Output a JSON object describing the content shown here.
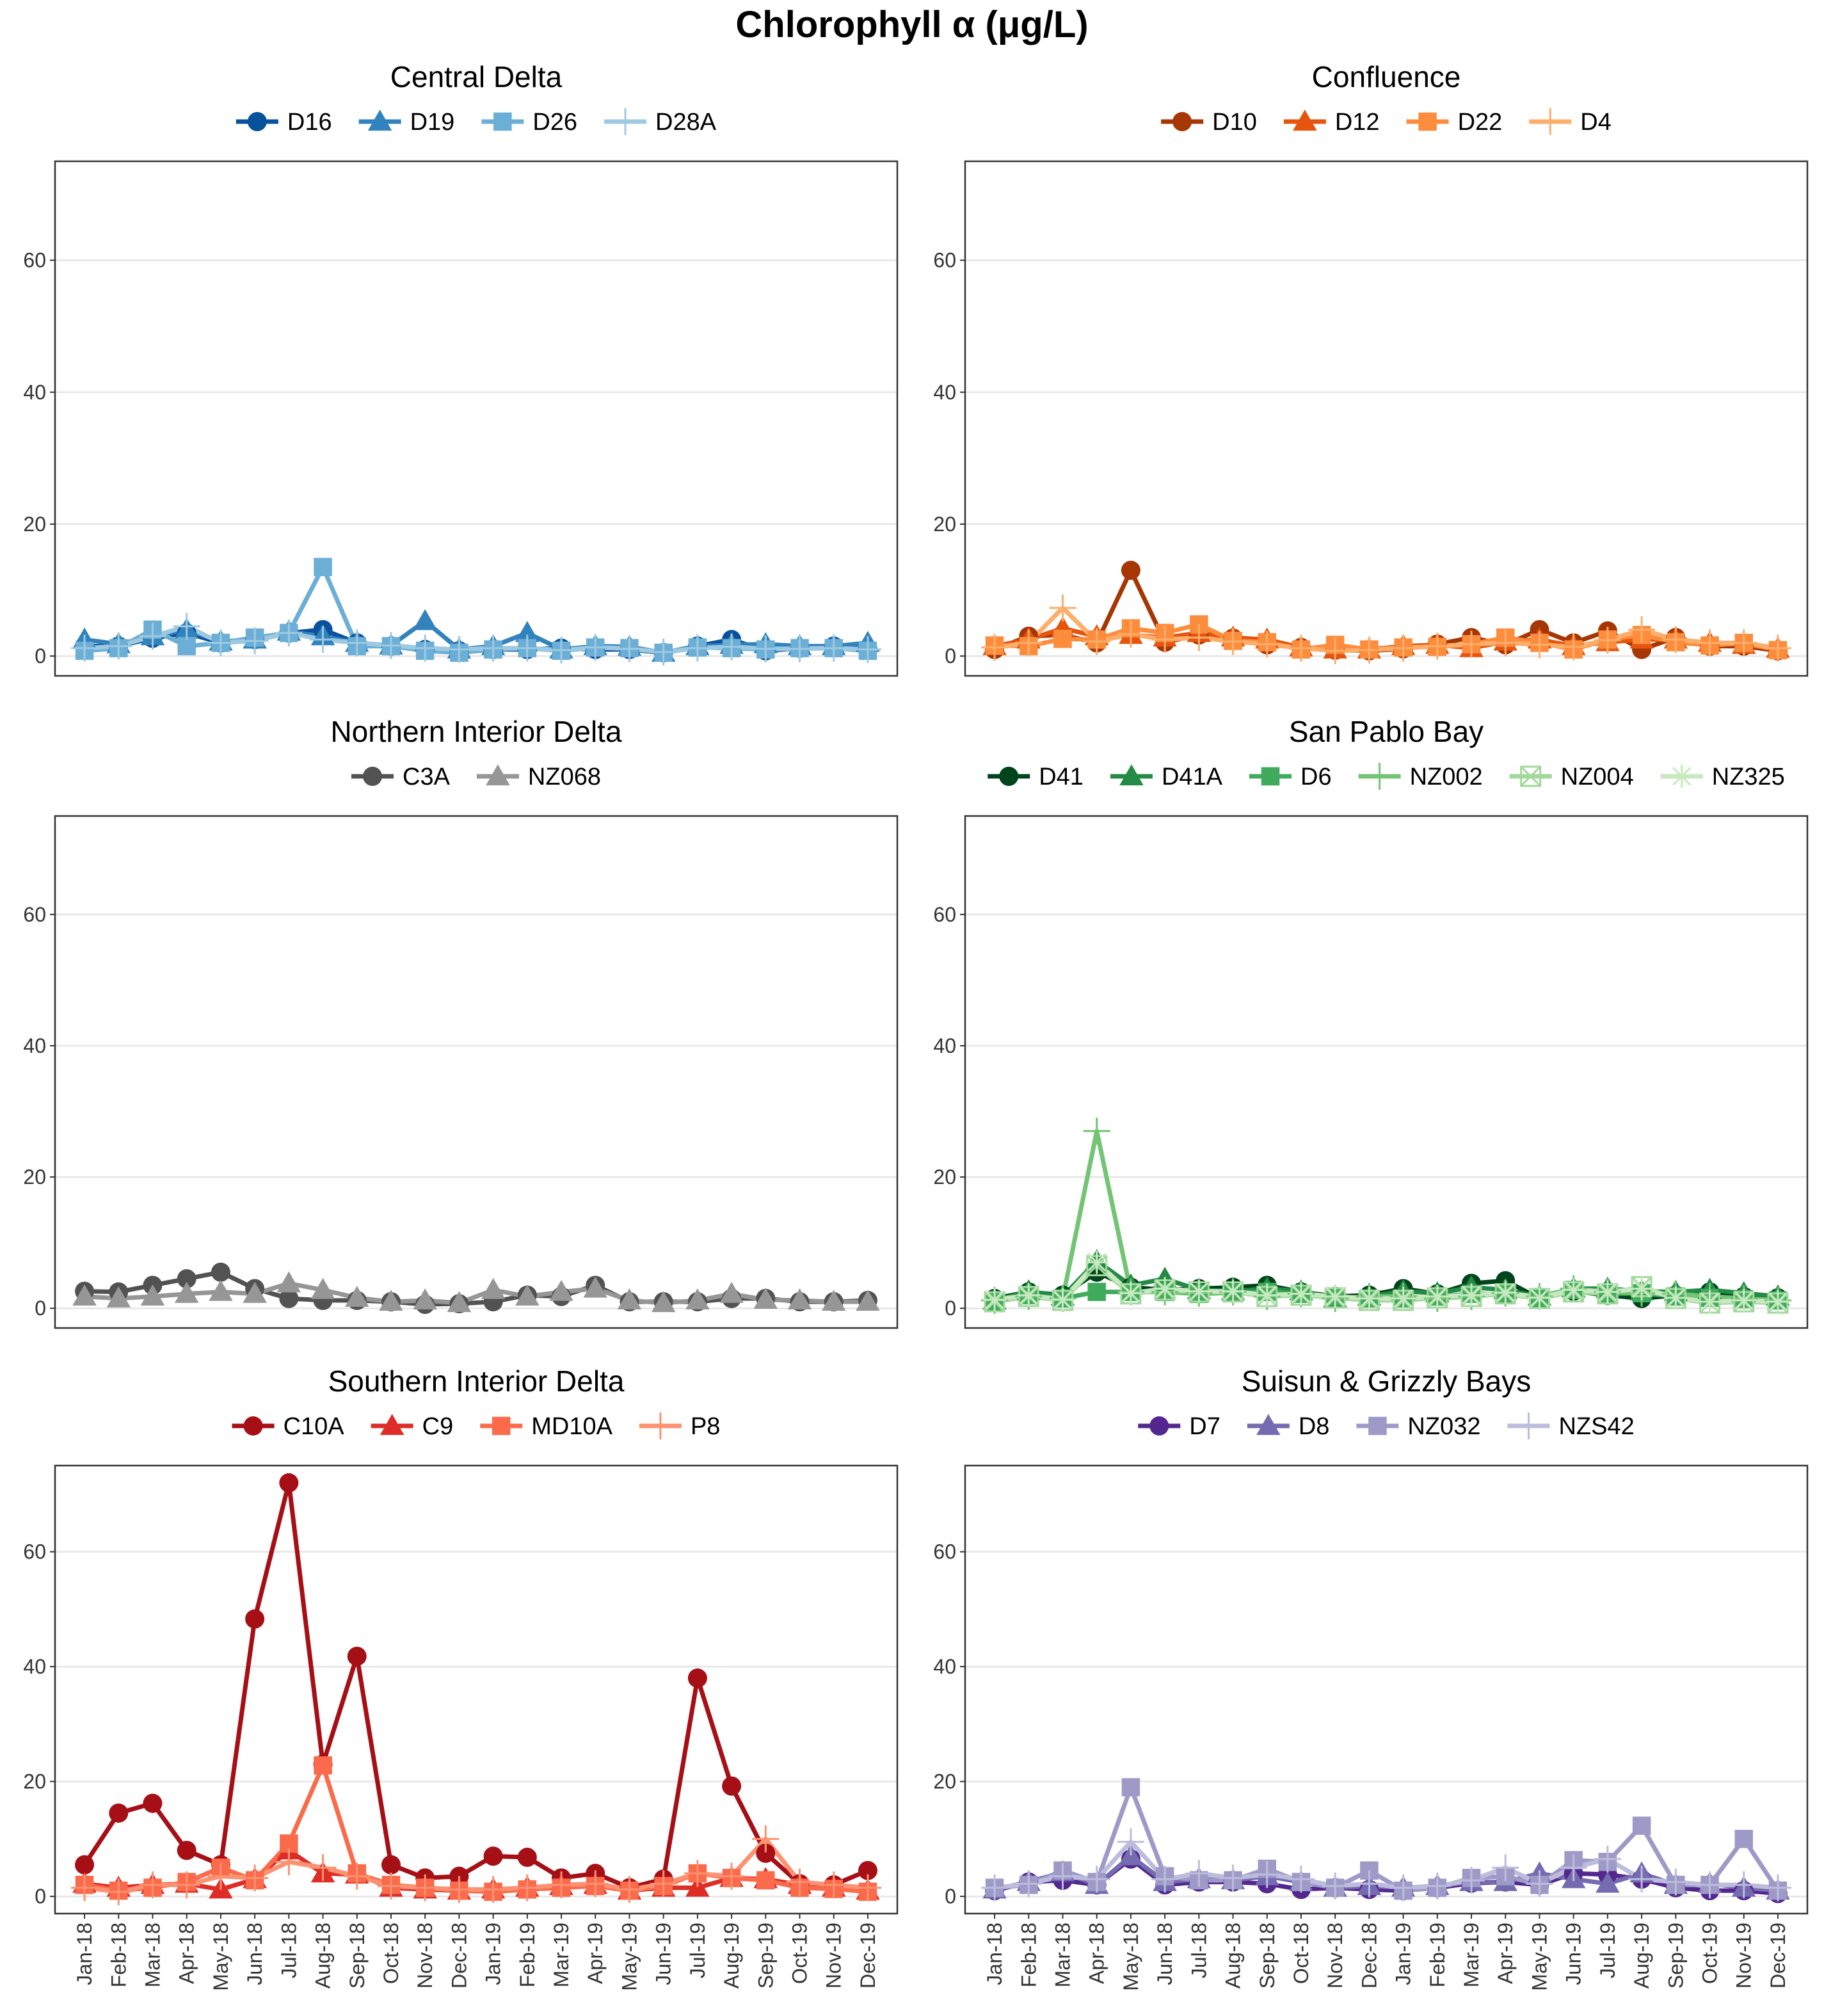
{
  "title": "Chlorophyll α (μg/L)",
  "months": [
    "Jan-18",
    "Feb-18",
    "Mar-18",
    "Apr-18",
    "May-18",
    "Jun-18",
    "Jul-18",
    "Aug-18",
    "Sep-18",
    "Oct-18",
    "Nov-18",
    "Dec-18",
    "Jan-19",
    "Feb-19",
    "Mar-19",
    "Apr-19",
    "May-19",
    "Jun-19",
    "Jul-19",
    "Aug-19",
    "Sep-19",
    "Oct-19",
    "Nov-19",
    "Dec-19"
  ],
  "chart_data": [
    {
      "type": "line",
      "title": "Central Delta",
      "ylim": [
        -3,
        75
      ],
      "yticks": [
        0,
        20,
        40,
        60
      ],
      "grid": true,
      "legend": "top",
      "series": [
        {
          "name": "D16",
          "color": "#08519c",
          "marker": "circle",
          "values": [
            1.5,
            1.5,
            2.7,
            3.5,
            2,
            2.5,
            3.5,
            4,
            2,
            1.5,
            1,
            0.8,
            1,
            1,
            1.2,
            1,
            1,
            0.5,
            1.5,
            2.5,
            0.8,
            1.2,
            1.5,
            1
          ]
        },
        {
          "name": "D19",
          "color": "#3182bd",
          "marker": "triangle",
          "values": [
            2.5,
            1.8,
            3,
            4,
            2.2,
            2.5,
            3.7,
            3,
            2,
            1.6,
            5.3,
            1,
            1.5,
            3.5,
            1,
            1.5,
            1.4,
            0.5,
            1.5,
            1.7,
            1.8,
            1.5,
            1.5,
            2
          ]
        },
        {
          "name": "D26",
          "color": "#6baed6",
          "marker": "square",
          "values": [
            0.8,
            1.2,
            4,
            1.5,
            2,
            2.8,
            3.5,
            13.5,
            1.5,
            1.5,
            0.8,
            0.5,
            1,
            1.2,
            0.8,
            1.3,
            1.2,
            0.5,
            1.3,
            1.2,
            1,
            1.2,
            1.2,
            0.8
          ]
        },
        {
          "name": "D28A",
          "color": "#9ecae1",
          "marker": "plus",
          "values": [
            1.2,
            1.5,
            3,
            4.5,
            2,
            2.3,
            3.5,
            2.5,
            2,
            1.6,
            1.2,
            1,
            1.2,
            1.2,
            0.9,
            1.3,
            1.1,
            0.6,
            1.2,
            1.4,
            1.1,
            1.1,
            1.2,
            1
          ]
        }
      ]
    },
    {
      "type": "line",
      "title": "Confluence",
      "ylim": [
        -3,
        75
      ],
      "yticks": [
        0,
        20,
        40,
        60
      ],
      "grid": true,
      "legend": "top",
      "series": [
        {
          "name": "D10",
          "color": "#a63603",
          "marker": "circle",
          "values": [
            1,
            3,
            3.2,
            2,
            13,
            2.1,
            3.2,
            2.7,
            1.7,
            1.3,
            0.9,
            0.8,
            1.1,
            1.8,
            2.8,
            1.7,
            4,
            2,
            3.8,
            1,
            2.8,
            1.5,
            1.5,
            0.8
          ]
        },
        {
          "name": "D12",
          "color": "#e6550d",
          "marker": "triangle",
          "values": [
            1.5,
            2.5,
            4.2,
            3,
            3.2,
            2.8,
            3.5,
            2.8,
            2.5,
            1.3,
            1,
            1,
            1.5,
            1.7,
            1.2,
            2.2,
            2.5,
            1.5,
            2.1,
            2.5,
            2.5,
            2,
            1.7,
            1.1
          ]
        },
        {
          "name": "D22",
          "color": "#fd8d3c",
          "marker": "square",
          "values": [
            1.6,
            1.5,
            2.6,
            2.5,
            4.2,
            3.5,
            4.8,
            2.3,
            2.1,
            1,
            1.7,
            1,
            1.3,
            1.4,
            1.8,
            2.8,
            2,
            1,
            2.5,
            3.2,
            2.1,
            1.6,
            2,
            0.9
          ]
        },
        {
          "name": "D4",
          "color": "#fdae6b",
          "marker": "plus",
          "values": [
            1.3,
            2,
            7.3,
            2.2,
            3.3,
            2.5,
            2.8,
            2.2,
            1.8,
            1.2,
            0.8,
            0.9,
            1.2,
            1.5,
            1.8,
            2,
            1.7,
            1.4,
            2.4,
            4,
            2.5,
            2,
            2,
            1.2
          ]
        }
      ]
    },
    {
      "type": "line",
      "title": "Northern Interior Delta",
      "ylim": [
        -3,
        75
      ],
      "yticks": [
        0,
        20,
        40,
        60
      ],
      "grid": true,
      "legend": "top",
      "series": [
        {
          "name": "C3A",
          "color": "#525252",
          "marker": "circle",
          "values": [
            2.6,
            2.5,
            3.5,
            4.5,
            5.5,
            3,
            1.5,
            1.2,
            1.2,
            1,
            0.6,
            0.7,
            1,
            2,
            1.8,
            3.5,
            1,
            1,
            1,
            1.5,
            1.5,
            1,
            1,
            1.2
          ]
        },
        {
          "name": "NZ068",
          "color": "#969696",
          "marker": "triangle",
          "values": [
            1.8,
            1.5,
            1.8,
            2.2,
            2.5,
            2.2,
            3.8,
            2.8,
            1.6,
            1,
            1.2,
            0.8,
            2.8,
            1.8,
            2.5,
            3,
            1.2,
            0.8,
            1.2,
            2.2,
            1.3,
            1.2,
            1,
            1
          ]
        }
      ]
    },
    {
      "type": "line",
      "title": "San Pablo Bay",
      "ylim": [
        -3,
        75
      ],
      "yticks": [
        0,
        20,
        40,
        60
      ],
      "grid": true,
      "legend": "top",
      "series": [
        {
          "name": "D41",
          "color": "#00441b",
          "marker": "circle",
          "values": [
            1.5,
            2.5,
            2,
            5.5,
            3.2,
            2.8,
            3,
            3.2,
            3.5,
            2.5,
            1.8,
            2,
            3,
            2.2,
            3.8,
            4.2,
            1.5,
            2.6,
            2,
            1.5,
            2,
            2.5,
            1.8,
            1.6
          ]
        },
        {
          "name": "D41A",
          "color": "#238b45",
          "marker": "triangle",
          "values": [
            1.2,
            2.6,
            1.8,
            7.2,
            3.5,
            4.5,
            2.8,
            2.6,
            3,
            2.6,
            1.5,
            1.8,
            2.6,
            2.3,
            3.2,
            2.8,
            1.8,
            3,
            3,
            2.6,
            2.5,
            2.8,
            2.3,
            1.8
          ]
        },
        {
          "name": "D6",
          "color": "#41ab5d",
          "marker": "square",
          "values": [
            1,
            2,
            1.5,
            2.5,
            2.5,
            2.5,
            2.2,
            2.4,
            2.5,
            2.2,
            1.8,
            1.5,
            1.5,
            1.8,
            2.2,
            2.2,
            1.5,
            2.8,
            2.2,
            2.3,
            1.8,
            1.6,
            1.4,
            1.2
          ]
        },
        {
          "name": "NZ002",
          "color": "#74c476",
          "marker": "plus",
          "values": [
            1.2,
            1.8,
            1.5,
            27,
            2.5,
            2.5,
            2.3,
            2.5,
            1.8,
            2.2,
            1.5,
            1.8,
            1.8,
            1.5,
            1.8,
            2.3,
            1.8,
            3,
            2.5,
            2.3,
            2.2,
            1.8,
            1.5,
            1.2
          ]
        },
        {
          "name": "NZ004",
          "color": "#a1d99b",
          "marker": "boxx",
          "values": [
            1,
            1.8,
            1.2,
            6.5,
            2.2,
            2.8,
            2.5,
            2.5,
            1.8,
            2,
            1.6,
            1.2,
            1.2,
            1.6,
            1.8,
            2.2,
            1.5,
            2.5,
            2.2,
            3.3,
            1.5,
            0.8,
            1,
            0.8
          ]
        },
        {
          "name": "NZ325",
          "color": "#c7e9c0",
          "marker": "star",
          "values": [
            1.3,
            2,
            1.3,
            7,
            2.3,
            3,
            2.6,
            2.6,
            2,
            2.2,
            1.8,
            1.5,
            1.5,
            1.8,
            2,
            2.4,
            1.6,
            2.8,
            2.5,
            3,
            1.6,
            1,
            1.2,
            1
          ]
        }
      ]
    },
    {
      "type": "line",
      "title": "Southern Interior Delta",
      "ylim": [
        -3,
        75
      ],
      "yticks": [
        0,
        20,
        40,
        60
      ],
      "grid": true,
      "legend": "top",
      "series": [
        {
          "name": "C10A",
          "color": "#a50f15",
          "marker": "circle",
          "values": [
            5.5,
            14.5,
            16.2,
            8,
            5.5,
            48.3,
            72,
            23,
            41.8,
            5.5,
            3.2,
            3.5,
            7,
            6.8,
            3.2,
            4,
            1.5,
            3,
            38,
            19.2,
            7.5,
            2.2,
            2,
            4.5
          ]
        },
        {
          "name": "C9",
          "color": "#de2d26",
          "marker": "triangle",
          "values": [
            2.2,
            1.5,
            2,
            2.2,
            1.2,
            3,
            8,
            4,
            3.8,
            1.5,
            1.2,
            1,
            1.2,
            1.5,
            1.8,
            2,
            1,
            1.5,
            1.5,
            3.2,
            3,
            2,
            1.5,
            1
          ]
        },
        {
          "name": "MD10A",
          "color": "#fb6a4a",
          "marker": "square",
          "values": [
            2,
            1,
            1.5,
            2.5,
            5,
            2.8,
            9.2,
            22.8,
            4,
            2,
            1.5,
            1,
            0.8,
            1.2,
            1.5,
            1.8,
            1,
            1.8,
            4,
            3.2,
            2.8,
            1.5,
            1.3,
            0.8
          ]
        },
        {
          "name": "P8",
          "color": "#fc9272",
          "marker": "plus",
          "values": [
            1.5,
            0.8,
            2,
            2,
            3.5,
            3.2,
            6,
            5,
            3.5,
            1.8,
            1.5,
            1.2,
            1.2,
            1.5,
            2,
            2.2,
            1.2,
            2.2,
            4,
            3.5,
            10,
            2.5,
            2,
            1.5
          ]
        }
      ]
    },
    {
      "type": "line",
      "title": "Suisun & Grizzly Bays",
      "ylim": [
        -3,
        75
      ],
      "yticks": [
        0,
        20,
        40,
        60
      ],
      "grid": true,
      "legend": "top",
      "series": [
        {
          "name": "D7",
          "color": "#54278f",
          "marker": "circle",
          "values": [
            1,
            2.5,
            2.8,
            2,
            6.5,
            2,
            2.5,
            2.5,
            2.2,
            1.2,
            1.5,
            1.2,
            1,
            1.5,
            2.3,
            2.5,
            2,
            4,
            3.8,
            3,
            1.5,
            1,
            1,
            0.5
          ]
        },
        {
          "name": "D8",
          "color": "#756bb1",
          "marker": "triangle",
          "values": [
            1.2,
            2.5,
            4.2,
            2,
            7,
            2.5,
            3,
            2.8,
            3.5,
            2.5,
            1.5,
            1.8,
            1.5,
            1.8,
            2.5,
            2.5,
            4,
            3,
            2.2,
            4,
            2,
            2.2,
            1.5,
            1
          ]
        },
        {
          "name": "NZ032",
          "color": "#9e9ac8",
          "marker": "square",
          "values": [
            1.5,
            2,
            4.5,
            2.5,
            19,
            3.5,
            2.8,
            2.8,
            4.8,
            2.5,
            1.5,
            4.5,
            1,
            1.5,
            3.2,
            3.5,
            2,
            6.3,
            6,
            12.3,
            2,
            2,
            10,
            1
          ]
        },
        {
          "name": "NZS42",
          "color": "#bcbddc",
          "marker": "plus",
          "values": [
            1.5,
            2.2,
            3.5,
            3,
            9.5,
            3,
            4,
            3.2,
            3.8,
            3,
            1.8,
            2.2,
            1.5,
            1.8,
            2.8,
            5,
            2.2,
            5,
            6.5,
            3,
            2.5,
            2,
            2,
            1.5
          ]
        }
      ]
    }
  ]
}
